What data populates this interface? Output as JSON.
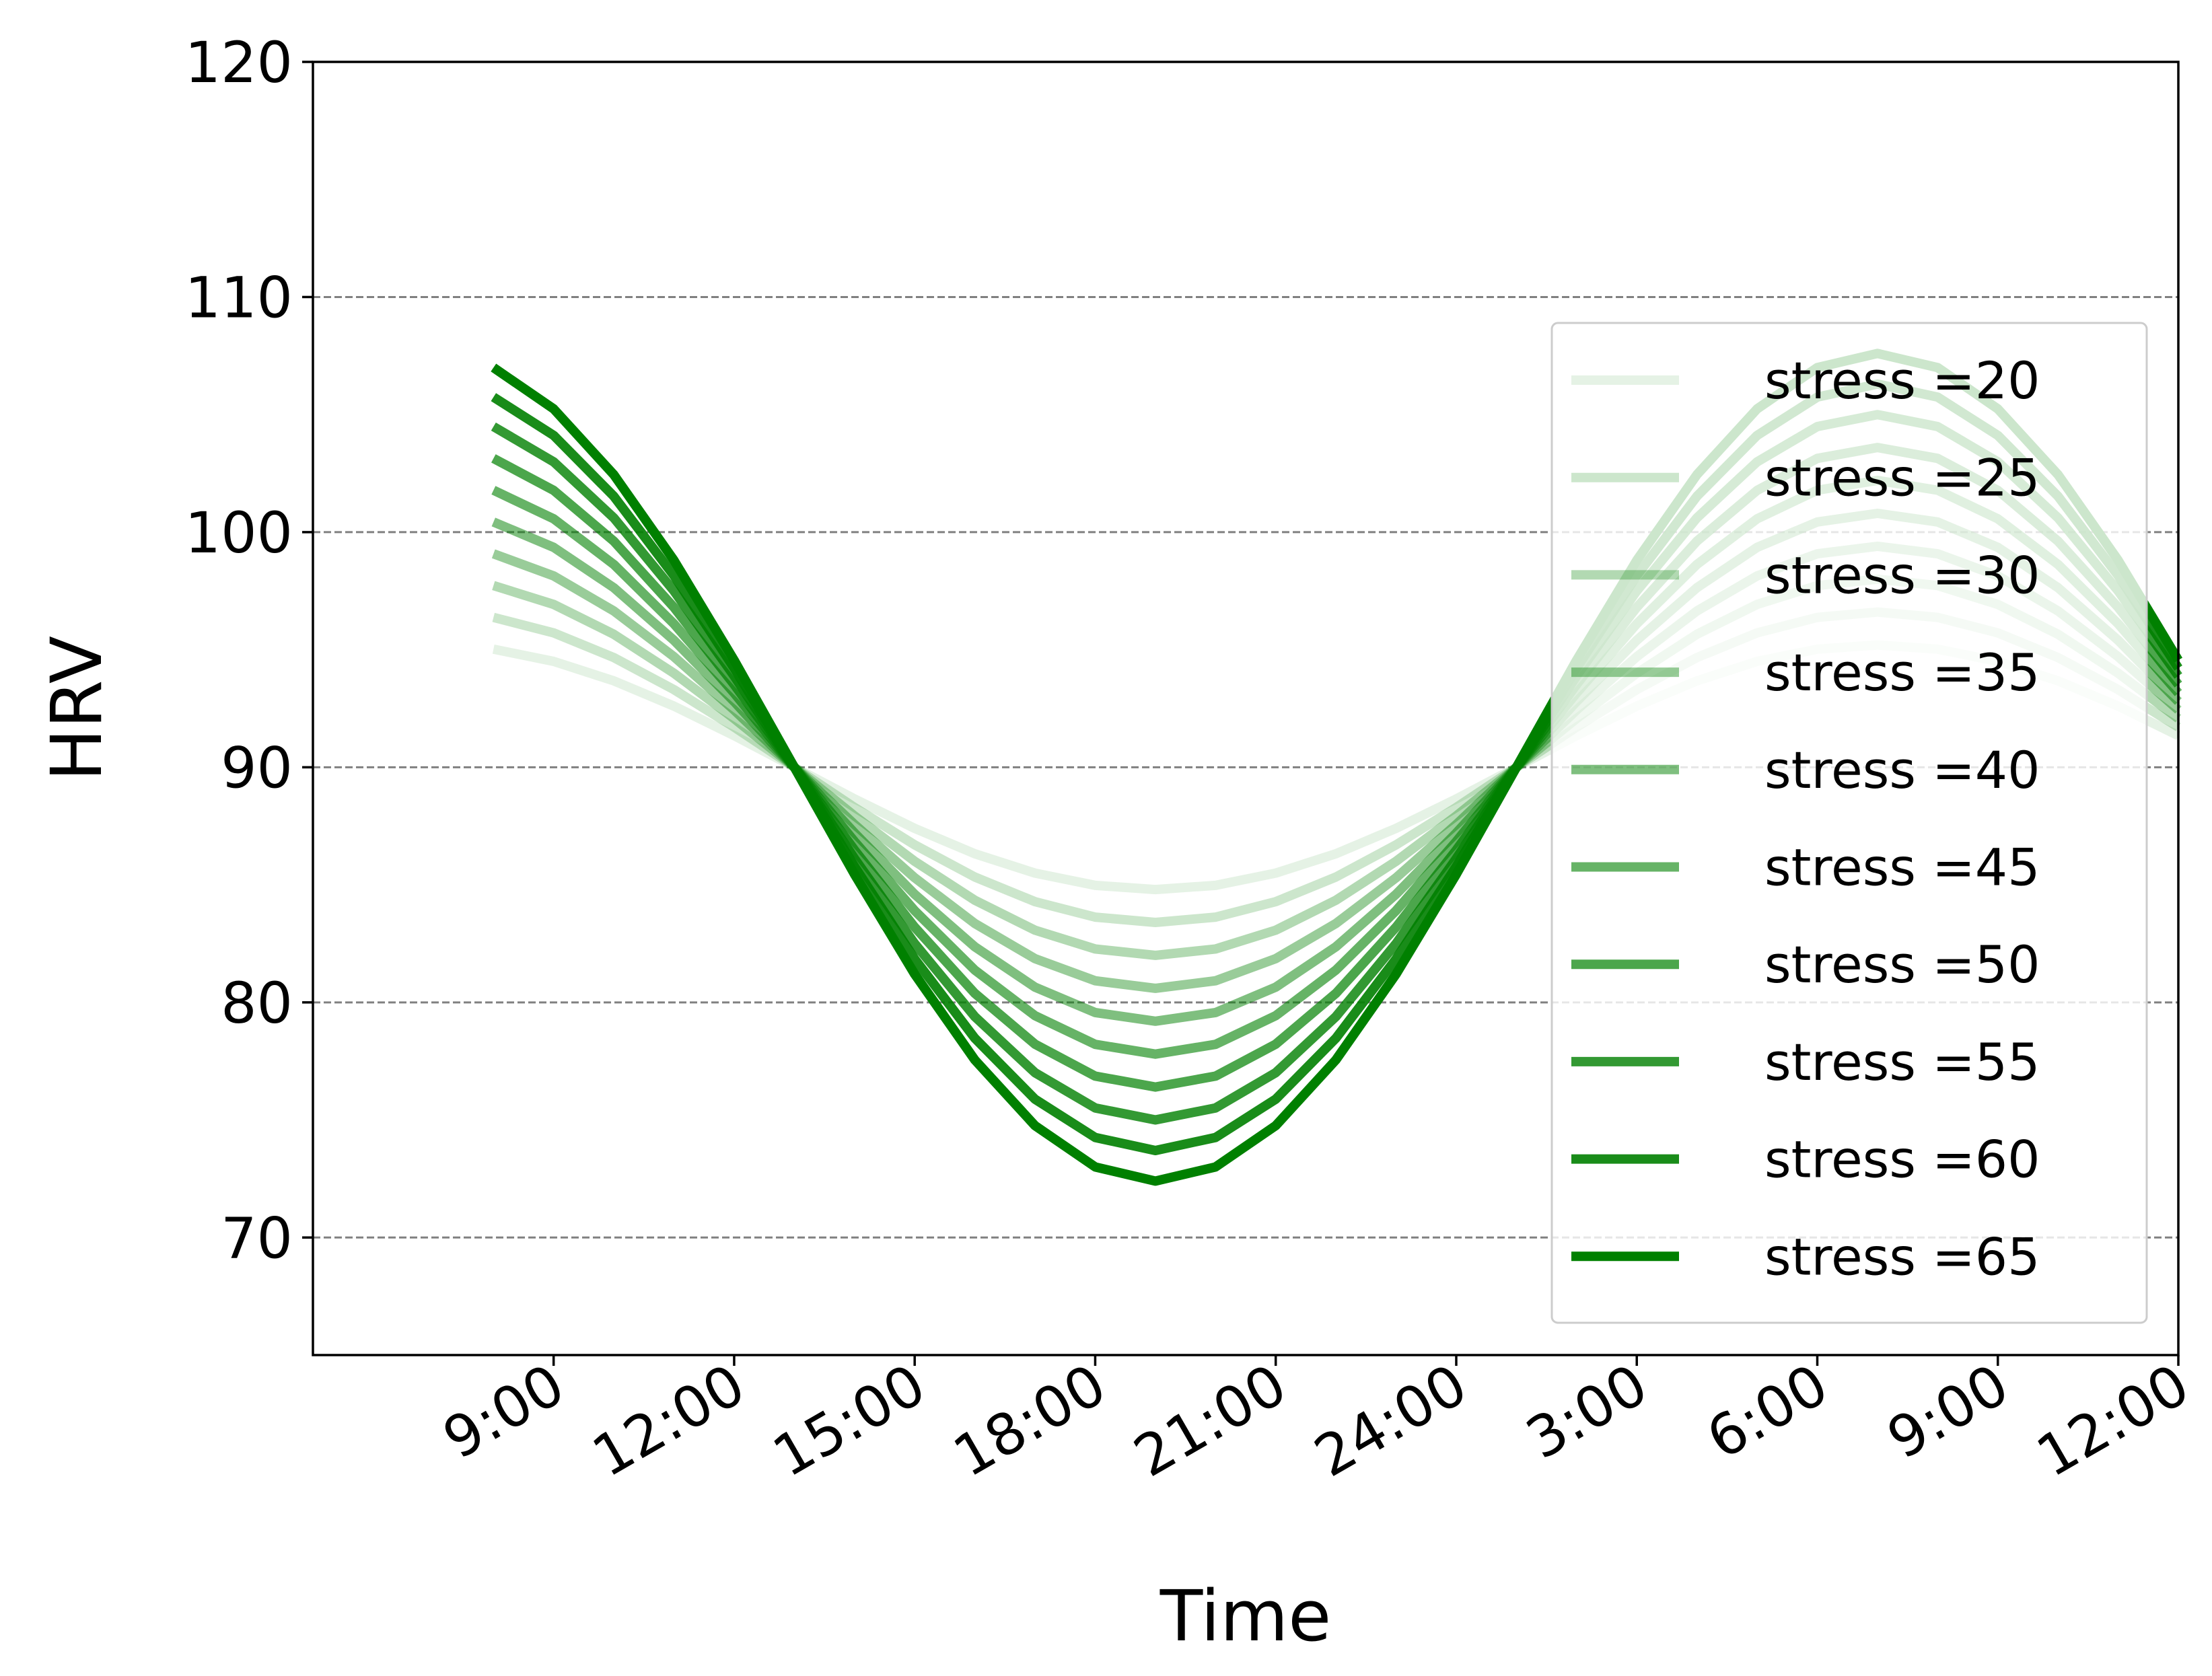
{
  "chart_data": {
    "type": "line",
    "title": "",
    "xlabel": "Time",
    "ylabel": "HRV",
    "ylim": [
      65,
      120
    ],
    "y_ticks": [
      "70",
      "80",
      "90",
      "100",
      "110",
      "120"
    ],
    "x_ticks": [
      "9:00",
      "12:00",
      "15:00",
      "18:00",
      "21:00",
      "24:00",
      "3:00",
      "6:00",
      "9:00",
      "12:00"
    ],
    "x_range_hours": [
      5.0,
      36.0
    ],
    "x_tick_hours": [
      9,
      12,
      15,
      18,
      21,
      24,
      27,
      30,
      33,
      36
    ],
    "grid": "horizontal dashed",
    "legend_position": "lower right",
    "line_color": "#008000",
    "model": "HRV = 90 + amplitude * cos(2*pi*(t - 7)/24), t in hours; all curves cross 90 near 1:00",
    "series": [
      {
        "name": "stress =20",
        "amplitude": 5.2
      },
      {
        "name": "stress =25",
        "amplitude": 6.6
      },
      {
        "name": "stress =30",
        "amplitude": 8.0
      },
      {
        "name": "stress =35",
        "amplitude": 9.4
      },
      {
        "name": "stress =40",
        "amplitude": 10.8
      },
      {
        "name": "stress =45",
        "amplitude": 12.2
      },
      {
        "name": "stress =50",
        "amplitude": 13.6
      },
      {
        "name": "stress =55",
        "amplitude": 15.0
      },
      {
        "name": "stress =60",
        "amplitude": 16.3
      },
      {
        "name": "stress =65",
        "amplitude": 17.6
      }
    ]
  }
}
